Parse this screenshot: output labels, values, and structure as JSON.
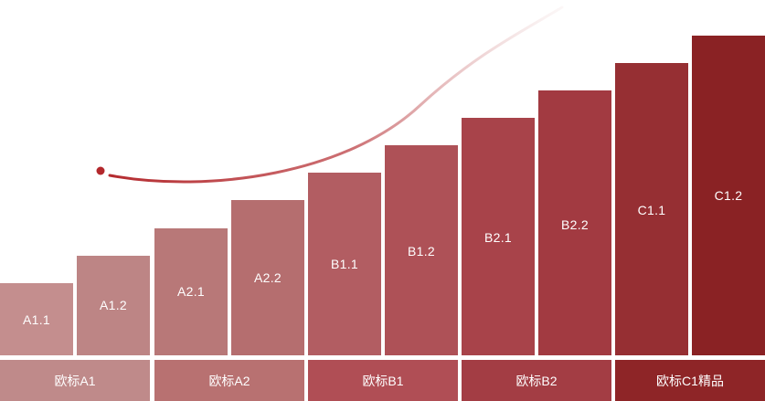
{
  "steps": [
    {
      "label": "A1.1",
      "color": "#c48e8e"
    },
    {
      "label": "A1.2",
      "color": "#bd8585"
    },
    {
      "label": "A2.1",
      "color": "#b87878"
    },
    {
      "label": "A2.2",
      "color": "#b56e6f"
    },
    {
      "label": "B1.1",
      "color": "#b25d62"
    },
    {
      "label": "B1.2",
      "color": "#ae5157"
    },
    {
      "label": "B2.1",
      "color": "#a8434a"
    },
    {
      "label": "B2.2",
      "color": "#a23a41"
    },
    {
      "label": "C1.1",
      "color": "#962f33"
    },
    {
      "label": "C1.2",
      "color": "#8a2224"
    }
  ],
  "levels": [
    {
      "label": "欧标A1",
      "color": "#bf8a8a"
    },
    {
      "label": "欧标A2",
      "color": "#b87171"
    },
    {
      "label": "欧标B1",
      "color": "#b04e55"
    },
    {
      "label": "欧标B2",
      "color": "#a33d44"
    },
    {
      "label": "欧标C1精品",
      "color": "#8e2527"
    }
  ],
  "curve": {
    "color": "#b33a3e"
  }
}
